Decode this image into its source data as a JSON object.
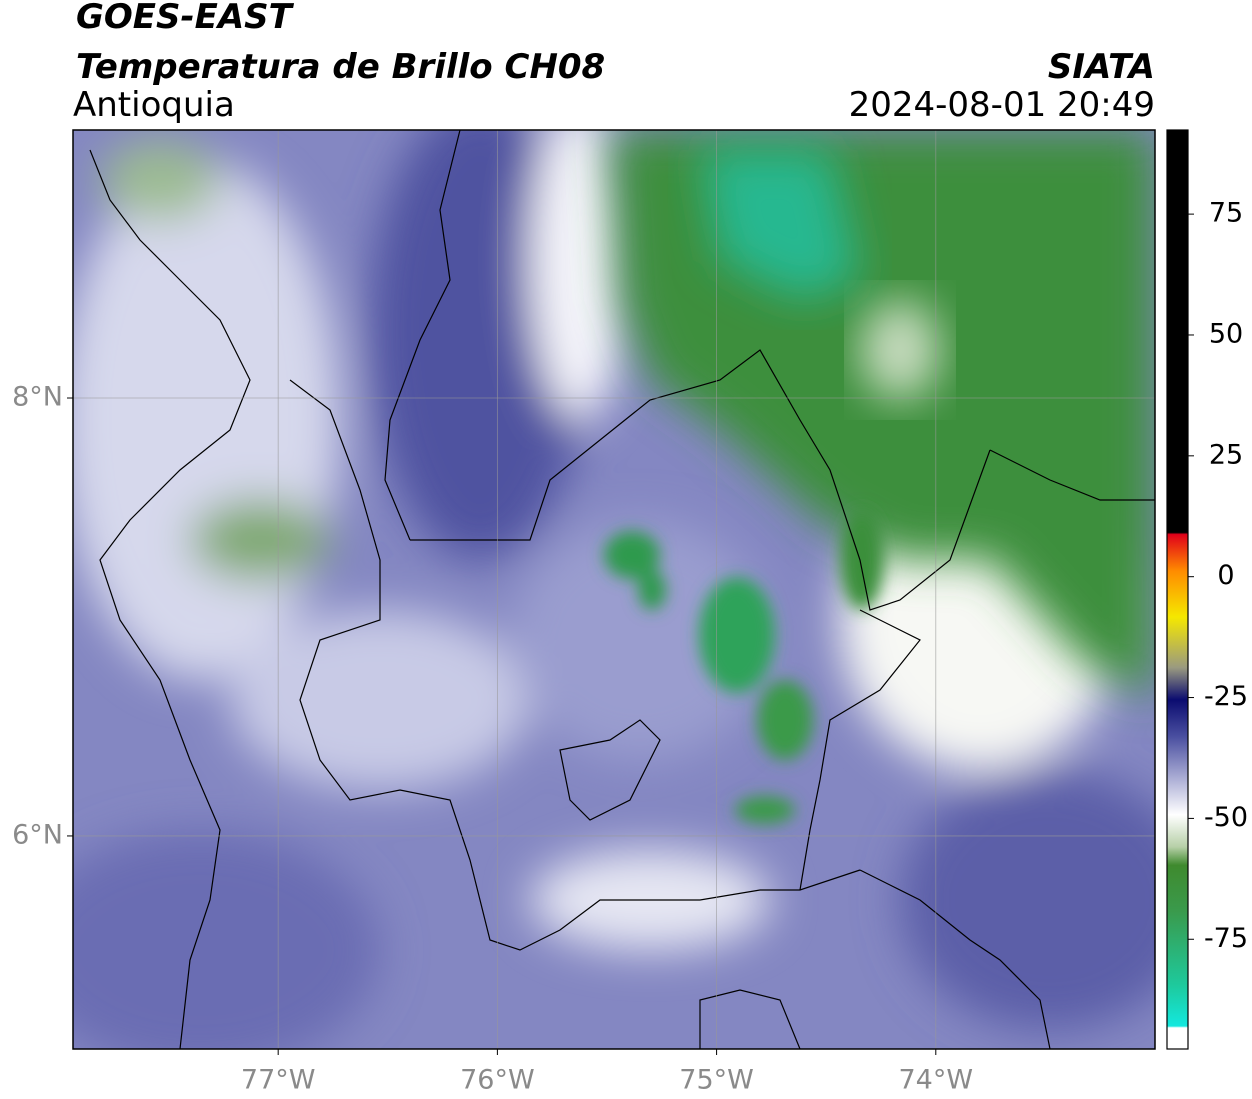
{
  "chart_data": {
    "type": "map",
    "title": "GOES-EAST",
    "subtitle": "Temperatura de Brillo CH08",
    "region": "Antioquia",
    "source": "SIATA",
    "timestamp": "2024-08-01 20:49",
    "xlim": [
      -77.936,
      -73.0
    ],
    "ylim": [
      5.027,
      9.224
    ],
    "xticks": [
      {
        "value": -77,
        "label": "77°W"
      },
      {
        "value": -76,
        "label": "76°W"
      },
      {
        "value": -75,
        "label": "75°W"
      },
      {
        "value": -74,
        "label": "74°W"
      }
    ],
    "yticks": [
      {
        "value": 6,
        "label": "6°N"
      },
      {
        "value": 8,
        "label": "8°N"
      }
    ],
    "grid": true,
    "colorbar": {
      "lim": [
        -97.7,
        92.4
      ],
      "ticks": [
        -75,
        -50,
        -25,
        0,
        25,
        50,
        75
      ]
    }
  }
}
